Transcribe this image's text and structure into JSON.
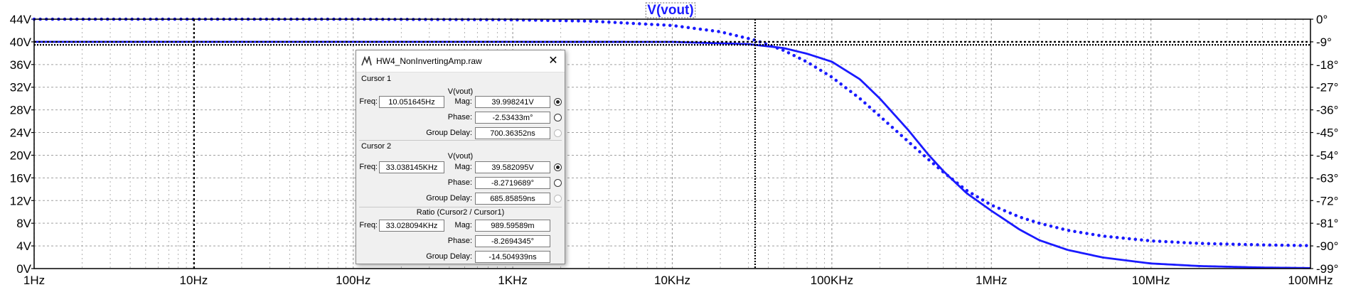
{
  "chart_data": {
    "type": "line",
    "title": "V(vout)",
    "x_scale": "log",
    "x_range_hz": [
      1,
      100000000
    ],
    "x_tick_labels": [
      "1Hz",
      "10Hz",
      "100Hz",
      "1KHz",
      "10KHz",
      "100KHz",
      "1MHz",
      "10MHz",
      "100MHz"
    ],
    "y_left_range_v": [
      0,
      44
    ],
    "y_left_tick_labels": [
      "44V",
      "40V",
      "36V",
      "32V",
      "28V",
      "24V",
      "20V",
      "16V",
      "12V",
      "8V",
      "4V",
      "0V"
    ],
    "y_right_range_deg": [
      -99,
      0
    ],
    "y_right_tick_labels": [
      "0°",
      "-9°",
      "-18°",
      "-27°",
      "-36°",
      "-45°",
      "-54°",
      "-63°",
      "-72°",
      "-81°",
      "-90°",
      "-99°"
    ],
    "grid": true,
    "series": [
      {
        "kind": "magnitude",
        "style": "solid",
        "color": "#1a1aff",
        "x": [
          1,
          10,
          100,
          1000,
          10000,
          30000,
          50000,
          70000,
          100000,
          150000,
          200000,
          300000,
          400000,
          500000,
          700000,
          1000000,
          1500000,
          2000000,
          3000000,
          5000000,
          10000000,
          20000000,
          50000000,
          100000000
        ],
        "y": [
          40,
          40,
          40,
          40,
          39.99,
          39.6,
          38.9,
          37.9,
          36.5,
          33.4,
          30,
          24.5,
          20.2,
          17.2,
          13.3,
          10.2,
          6.9,
          5,
          3.3,
          1.95,
          0.9,
          0.45,
          0.18,
          0.09
        ]
      },
      {
        "kind": "phase",
        "style": "dotted",
        "color": "#1a1aff",
        "x": [
          1,
          10,
          100,
          1000,
          3000,
          10000,
          20000,
          33000,
          50000,
          70000,
          100000,
          150000,
          200000,
          300000,
          400000,
          500000,
          700000,
          1000000,
          1500000,
          2000000,
          3000000,
          5000000,
          10000000,
          20000000,
          50000000,
          100000000
        ],
        "y": [
          0,
          0,
          0,
          -0.25,
          -0.75,
          -2.5,
          -5,
          -8.3,
          -12.4,
          -17,
          -23,
          -31.5,
          -38.5,
          -48.5,
          -55.5,
          -60.7,
          -68,
          -73.8,
          -78.5,
          -81,
          -83.8,
          -86.1,
          -88,
          -89,
          -89.6,
          -89.9
        ]
      }
    ],
    "cursors": [
      {
        "name": "Cursor 1",
        "freq_hz": 10.051645,
        "style": "dashed"
      },
      {
        "name": "Cursor 2",
        "freq_hz": 33038.145,
        "style": "dotted"
      }
    ],
    "colors": {
      "trace": "#1a1aff",
      "grid": "#a0a0a0",
      "cursor": "#000000"
    }
  },
  "dialog": {
    "title": "HW4_NonInvertingAmp.raw",
    "close_label": "✕",
    "cursor1": {
      "label": "Cursor 1",
      "signal": "V(vout)",
      "freq_label": "Freq:",
      "freq": "10.051645Hz",
      "mag_label": "Mag:",
      "mag": "39.998241V",
      "phase_label": "Phase:",
      "phase": "-2.53433m°",
      "gd_label": "Group Delay:",
      "gd": "700.36352ns"
    },
    "cursor2": {
      "label": "Cursor 2",
      "signal": "V(vout)",
      "freq_label": "Freq:",
      "freq": "33.038145KHz",
      "mag_label": "Mag:",
      "mag": "39.582095V",
      "phase_label": "Phase:",
      "phase": "-8.2719689°",
      "gd_label": "Group Delay:",
      "gd": "685.85859ns"
    },
    "ratio": {
      "label": "Ratio (Cursor2 / Cursor1)",
      "freq_label": "Freq:",
      "freq": "33.028094KHz",
      "mag_label": "Mag:",
      "mag": "989.59589m",
      "phase_label": "Phase:",
      "phase": "-8.2694345°",
      "gd_label": "Group Delay:",
      "gd": "-14.504939ns"
    }
  }
}
